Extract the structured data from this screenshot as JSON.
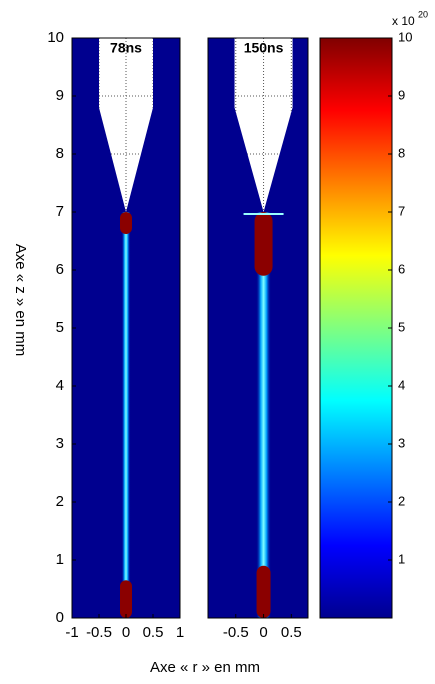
{
  "chart_data": {
    "type": "heatmap",
    "x_label": "Axe « r » en mm",
    "y_label": "Axe « z » en mm",
    "ylim": [
      0,
      10
    ],
    "yticks": [
      0,
      1,
      2,
      3,
      4,
      5,
      6,
      7,
      8,
      9,
      10
    ],
    "grid": true,
    "panels": [
      {
        "title": "78ns",
        "xlim": [
          -1,
          1
        ],
        "xticks": [
          -1,
          -0.5,
          0,
          0.5,
          1
        ]
      },
      {
        "title": "150ns",
        "xlim": [
          -1,
          0.8
        ],
        "xticks": [
          -0.5,
          0,
          0.5
        ]
      }
    ],
    "colorbar": {
      "clim": [
        0,
        10
      ],
      "ticks": [
        1,
        2,
        3,
        4,
        5,
        6,
        7,
        8,
        9,
        10
      ],
      "multiplier": "x 10",
      "exponent": "20"
    }
  }
}
